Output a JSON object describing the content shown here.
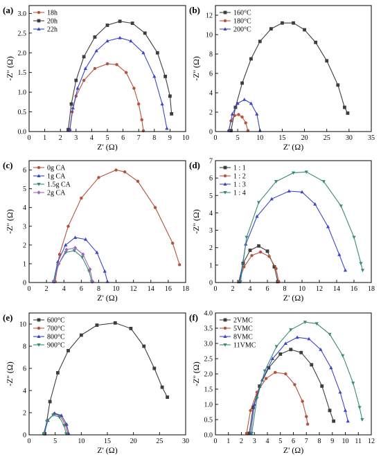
{
  "chart_data": [
    {
      "panel_label": "(a)",
      "type": "scatter",
      "xlabel": "Z' (Ω)",
      "ylabel": "-Z'' (Ω)",
      "xlim": [
        0,
        10
      ],
      "ylim": [
        0,
        3.2
      ],
      "xticks": [
        0,
        1,
        2,
        3,
        4,
        5,
        6,
        7,
        8,
        9,
        10
      ],
      "yticks": [
        0.0,
        0.5,
        1.0,
        1.5,
        2.0,
        2.5,
        3.0
      ],
      "ytick_labels": [
        "0.0",
        "0.5",
        "1.0",
        "1.5",
        "2.0",
        "2.5",
        "3.0"
      ],
      "legend_position": "top-left",
      "series": [
        {
          "name": "18h",
          "color": "#b5523b",
          "marker": "circle",
          "x": [
            2.6,
            2.75,
            3.0,
            3.5,
            4.2,
            5.0,
            5.6,
            6.2,
            6.7,
            7.0,
            7.2,
            7.3
          ],
          "y": [
            0.05,
            0.5,
            0.9,
            1.3,
            1.6,
            1.72,
            1.7,
            1.5,
            1.1,
            0.7,
            0.3,
            0.02
          ]
        },
        {
          "name": "20h",
          "color": "#3d3d3d",
          "marker": "square",
          "x": [
            2.5,
            2.7,
            3.0,
            3.5,
            4.2,
            5.0,
            5.8,
            6.6,
            7.4,
            8.2,
            8.7,
            9.0,
            9.1
          ],
          "y": [
            0.05,
            0.7,
            1.3,
            1.9,
            2.4,
            2.7,
            2.8,
            2.75,
            2.5,
            2.0,
            1.4,
            0.9,
            0.45
          ]
        },
        {
          "name": "22h",
          "color": "#3a46c8",
          "marker": "triangle",
          "x": [
            2.6,
            2.8,
            3.1,
            3.6,
            4.3,
            5.0,
            5.8,
            6.5,
            7.3,
            8.0,
            8.5,
            8.8
          ],
          "y": [
            0.05,
            0.6,
            1.1,
            1.6,
            2.05,
            2.3,
            2.38,
            2.3,
            2.0,
            1.4,
            0.7,
            0.08
          ]
        }
      ]
    },
    {
      "panel_label": "(b)",
      "type": "scatter",
      "xlabel": "Z' (Ω)",
      "ylabel": "-Z'' (Ω)",
      "xlim": [
        0,
        35
      ],
      "ylim": [
        0,
        13
      ],
      "xticks": [
        0,
        5,
        10,
        15,
        20,
        25,
        30,
        35
      ],
      "yticks": [
        0,
        2,
        4,
        6,
        8,
        10,
        12
      ],
      "legend_position": "top-left",
      "series": [
        {
          "name": "160°C",
          "color": "#3d3d3d",
          "marker": "square",
          "x": [
            3.5,
            4.5,
            6,
            8,
            10,
            12.5,
            15,
            17.5,
            20,
            22.5,
            25,
            27.5,
            29,
            29.7
          ],
          "y": [
            0.1,
            2.5,
            5,
            7.5,
            9.3,
            10.6,
            11.2,
            11.2,
            10.5,
            9.2,
            7.3,
            4.8,
            2.5,
            1.9
          ]
        },
        {
          "name": "180°C",
          "color": "#b5523b",
          "marker": "circle",
          "x": [
            3.0,
            3.5,
            4.3,
            5.2,
            6.0,
            6.8,
            7.3
          ],
          "y": [
            0.1,
            1.1,
            1.65,
            1.75,
            1.5,
            0.9,
            0.1
          ]
        },
        {
          "name": "200°C",
          "color": "#3a46c8",
          "marker": "triangle",
          "x": [
            3.0,
            3.8,
            5.0,
            6.5,
            8.0,
            9.3,
            10.0
          ],
          "y": [
            0.1,
            1.8,
            2.9,
            3.3,
            2.9,
            1.8,
            0.1
          ]
        }
      ]
    },
    {
      "panel_label": "(c)",
      "type": "scatter",
      "xlabel": "Z' (Ω)",
      "ylabel": "-Z'' (Ω)",
      "xlim": [
        0,
        18
      ],
      "ylim": [
        0,
        6.5
      ],
      "xticks": [
        0,
        2,
        4,
        6,
        8,
        10,
        12,
        14,
        16,
        18
      ],
      "yticks": [
        0,
        1,
        2,
        3,
        4,
        5,
        6
      ],
      "legend_position": "top-left",
      "series": [
        {
          "name": "0g CA",
          "color": "#b5523b",
          "marker": "circle",
          "x": [
            3.0,
            3.5,
            4.5,
            6,
            8,
            10,
            11,
            12.5,
            14.5,
            16.5,
            17.3
          ],
          "y": [
            0.05,
            1.5,
            3.0,
            4.5,
            5.6,
            6.0,
            5.9,
            5.4,
            4.0,
            2.1,
            0.95
          ]
        },
        {
          "name": "1g CA",
          "color": "#3a46c8",
          "marker": "triangle",
          "x": [
            2.8,
            3.3,
            4.2,
            5.3,
            6.5,
            7.8,
            8.7,
            9.0
          ],
          "y": [
            0.05,
            1.1,
            2.0,
            2.4,
            2.3,
            1.6,
            0.6,
            0.05
          ]
        },
        {
          "name": "1.5g CA",
          "color": "#3a8a78",
          "marker": "triangle-down",
          "x": [
            2.8,
            3.3,
            4.2,
            5.2,
            6.1,
            6.9,
            7.2
          ],
          "y": [
            0.05,
            0.9,
            1.6,
            1.7,
            1.35,
            0.6,
            0.05
          ]
        },
        {
          "name": "2g CA",
          "color": "#9b6ab8",
          "marker": "diamond",
          "x": [
            2.9,
            3.4,
            4.3,
            5.3,
            6.2,
            7.0,
            7.3
          ],
          "y": [
            0.05,
            1.0,
            1.75,
            1.85,
            1.5,
            0.7,
            0.05
          ]
        }
      ]
    },
    {
      "panel_label": "(d)",
      "type": "scatter",
      "xlabel": "Z' (Ω)",
      "ylabel": "-Z'' (Ω)",
      "xlim": [
        0,
        18
      ],
      "ylim": [
        0,
        7
      ],
      "xticks": [
        0,
        2,
        4,
        6,
        8,
        10,
        12,
        14,
        16,
        18
      ],
      "yticks": [
        0,
        1,
        2,
        3,
        4,
        5,
        6,
        7
      ],
      "legend_position": "top-left",
      "series": [
        {
          "name": "1 : 1",
          "color": "#3d3d3d",
          "marker": "square",
          "x": [
            2.7,
            3.2,
            4.0,
            5.0,
            6.0,
            6.8,
            7.2
          ],
          "y": [
            0.05,
            1.1,
            1.85,
            2.1,
            1.8,
            0.9,
            0.05
          ]
        },
        {
          "name": "1 : 2",
          "color": "#b5523b",
          "marker": "circle",
          "x": [
            2.7,
            3.3,
            4.2,
            5.2,
            6.2,
            7.0,
            7.3
          ],
          "y": [
            0.05,
            0.9,
            1.55,
            1.75,
            1.5,
            0.8,
            0.05
          ]
        },
        {
          "name": "1 : 3",
          "color": "#3a46c8",
          "marker": "triangle",
          "x": [
            2.8,
            3.5,
            4.8,
            6.5,
            8.5,
            10.0,
            11.5,
            13.0,
            14.3,
            15.0
          ],
          "y": [
            0.05,
            2.2,
            3.8,
            4.8,
            5.25,
            5.2,
            4.5,
            3.2,
            1.6,
            0.7
          ]
        },
        {
          "name": "1 : 4",
          "color": "#3a8a78",
          "marker": "triangle-down",
          "x": [
            2.9,
            3.6,
            5.0,
            7.0,
            9.0,
            10.5,
            12.5,
            14.5,
            16.0,
            16.8,
            17.0
          ],
          "y": [
            0.05,
            2.6,
            4.6,
            5.8,
            6.3,
            6.35,
            5.8,
            4.4,
            2.6,
            1.1,
            0.7
          ]
        }
      ]
    },
    {
      "panel_label": "(e)",
      "type": "scatter",
      "xlabel": "Z' (Ω)",
      "ylabel": "-Z'' (Ω)",
      "xlim": [
        0,
        30
      ],
      "ylim": [
        0,
        11
      ],
      "xticks": [
        0,
        5,
        10,
        15,
        20,
        25,
        30
      ],
      "yticks": [
        0,
        2,
        4,
        6,
        8,
        10
      ],
      "legend_position": "top-left",
      "series": [
        {
          "name": "600°C",
          "color": "#3d3d3d",
          "marker": "square",
          "x": [
            3.0,
            4.0,
            5.5,
            7.5,
            10,
            13,
            16.5,
            19.5,
            22,
            24,
            25.5,
            26.5
          ],
          "y": [
            0.1,
            3.0,
            5.6,
            7.6,
            9.0,
            9.9,
            10.1,
            9.6,
            8.0,
            6.0,
            4.3,
            3.4
          ]
        },
        {
          "name": "700°C",
          "color": "#b5523b",
          "marker": "circle",
          "x": [
            2.8,
            3.5,
            4.8,
            6.0,
            7.0,
            7.4
          ],
          "y": [
            0.1,
            1.3,
            1.9,
            1.7,
            0.9,
            0.1
          ]
        },
        {
          "name": "800°C",
          "color": "#3a46c8",
          "marker": "triangle",
          "x": [
            2.9,
            3.6,
            4.9,
            6.2,
            7.2,
            7.6
          ],
          "y": [
            0.1,
            1.3,
            1.95,
            1.75,
            0.95,
            0.1
          ]
        },
        {
          "name": "900°C",
          "color": "#3a8a78",
          "marker": "triangle-down",
          "x": [
            2.8,
            3.4,
            4.6,
            5.8,
            6.7,
            7.1
          ],
          "y": [
            0.1,
            1.2,
            1.8,
            1.6,
            0.85,
            0.1
          ]
        }
      ]
    },
    {
      "panel_label": "(f)",
      "type": "scatter",
      "xlabel": "Z' (Ω)",
      "ylabel": "-Z'' (Ω)",
      "xlim": [
        0,
        12
      ],
      "ylim": [
        0,
        4.0
      ],
      "xticks": [
        0,
        1,
        2,
        3,
        4,
        5,
        6,
        7,
        8,
        9,
        10,
        11,
        12
      ],
      "yticks": [
        0.0,
        0.5,
        1.0,
        1.5,
        2.0,
        2.5,
        3.0,
        3.5,
        4.0
      ],
      "ytick_labels": [
        "0.0",
        "0.5",
        "1.0",
        "1.5",
        "2.0",
        "2.5",
        "3.0",
        "3.5",
        "4.0"
      ],
      "legend_position": "top-left",
      "series": [
        {
          "name": "2VMC",
          "color": "#3d3d3d",
          "marker": "square",
          "x": [
            2.6,
            2.9,
            3.4,
            4.1,
            5.0,
            5.8,
            6.6,
            7.4,
            8.2,
            8.8,
            9.1
          ],
          "y": [
            0.05,
            0.9,
            1.6,
            2.2,
            2.65,
            2.8,
            2.7,
            2.3,
            1.6,
            0.8,
            0.45
          ]
        },
        {
          "name": "5VMC",
          "color": "#b5523b",
          "marker": "circle",
          "x": [
            2.4,
            2.7,
            3.2,
            3.9,
            4.6,
            5.4,
            6.1,
            6.7,
            7.0,
            7.1
          ],
          "y": [
            0.05,
            0.8,
            1.4,
            1.85,
            2.05,
            2.0,
            1.65,
            1.1,
            0.6,
            0.35
          ]
        },
        {
          "name": "8VMC",
          "color": "#3a46c8",
          "marker": "triangle",
          "x": [
            2.7,
            3.0,
            3.6,
            4.4,
            5.4,
            6.3,
            7.2,
            8.1,
            8.9,
            9.6,
            10.0,
            10.2
          ],
          "y": [
            0.05,
            1.0,
            1.8,
            2.5,
            3.0,
            3.2,
            3.15,
            2.8,
            2.2,
            1.4,
            0.8,
            0.45
          ]
        },
        {
          "name": "11VMC",
          "color": "#3a8a78",
          "marker": "triangle-down",
          "x": [
            2.8,
            3.2,
            3.8,
            4.7,
            5.8,
            6.9,
            7.8,
            8.8,
            9.8,
            10.6,
            11.1,
            11.3
          ],
          "y": [
            0.05,
            1.2,
            2.1,
            2.9,
            3.45,
            3.7,
            3.65,
            3.3,
            2.6,
            1.7,
            0.9,
            0.5
          ]
        }
      ]
    }
  ]
}
